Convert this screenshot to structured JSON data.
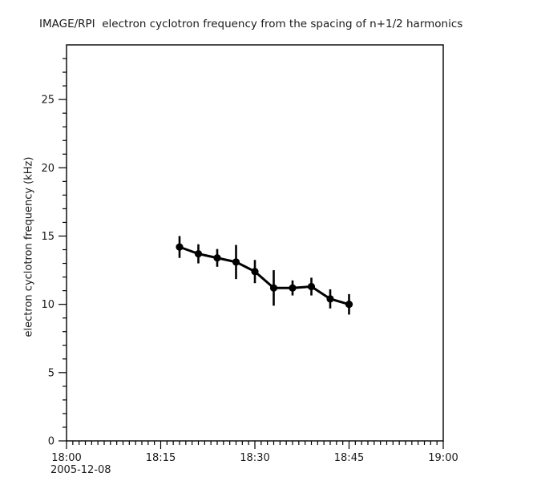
{
  "title": "IMAGE/RPI  electron cyclotron frequency from the spacing of n+1/2 harmonics",
  "colors": {
    "background": "#ffffff",
    "axis": "#000000",
    "data": "#000000",
    "text": "#1a1a1a"
  },
  "chart_data": {
    "type": "line",
    "title": "IMAGE/RPI  electron cyclotron frequency from the spacing of n+1/2 harmonics",
    "ylabel": "electron cyclotron frequency (kHz)",
    "xlabel": "",
    "date_label": "2005-12-08",
    "grid": false,
    "legend": null,
    "x_axis": {
      "major_tick_labels": [
        "18:00",
        "18:15",
        "18:30",
        "18:45",
        "19:00"
      ],
      "major_tick_minutes": [
        0,
        15,
        30,
        45,
        60
      ],
      "minor_tick_step_minutes": 1,
      "xlim_minutes": [
        0,
        60
      ]
    },
    "y_axis": {
      "major_tick_labels": [
        "0",
        "5",
        "10",
        "15",
        "20",
        "25"
      ],
      "major_ticks": [
        0,
        5,
        10,
        15,
        20,
        25
      ],
      "minor_tick_step": 1,
      "ylim": [
        0,
        29
      ]
    },
    "series": [
      {
        "name": "electron cyclotron frequency",
        "marker": "filled-circle",
        "color": "#000000",
        "error_bars": true,
        "x_times": [
          "18:18",
          "18:21",
          "18:24",
          "18:27",
          "18:30",
          "18:33",
          "18:36",
          "18:39",
          "18:42",
          "18:45"
        ],
        "x_minutes": [
          18,
          21,
          24,
          27,
          30,
          33,
          36,
          39,
          42,
          45
        ],
        "values_khz": [
          14.2,
          13.7,
          13.4,
          13.1,
          12.4,
          11.2,
          11.2,
          11.3,
          10.4,
          10.0
        ],
        "error_khz": [
          0.8,
          0.7,
          0.65,
          1.25,
          0.85,
          1.3,
          0.55,
          0.65,
          0.7,
          0.75
        ]
      }
    ]
  }
}
